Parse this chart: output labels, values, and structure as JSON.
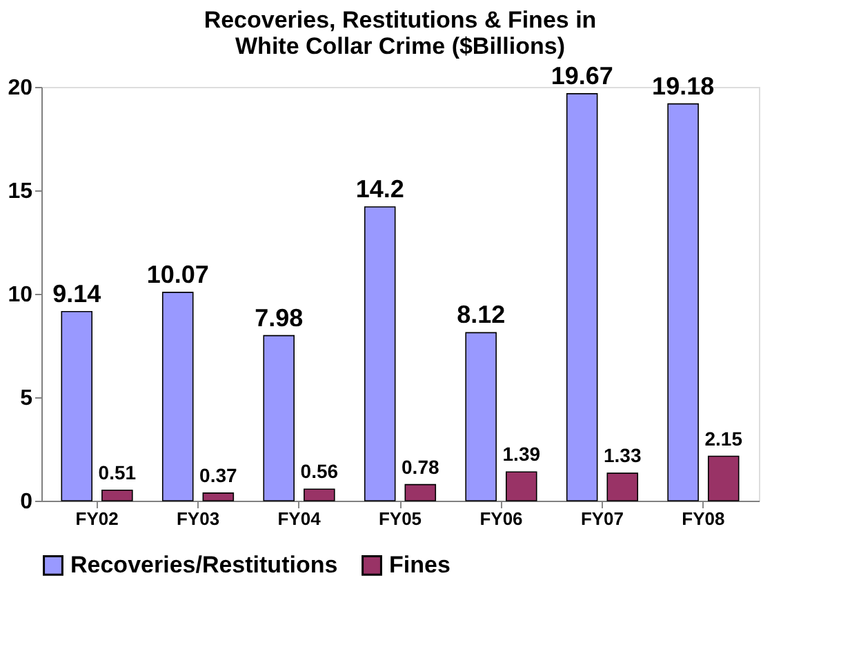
{
  "chart_data": {
    "type": "bar",
    "title": "Recoveries, Restitutions & Fines in White Collar Crime ($Billions)",
    "categories": [
      "FY02",
      "FY03",
      "FY04",
      "FY05",
      "FY06",
      "FY07",
      "FY08"
    ],
    "series": [
      {
        "name": "Recoveries/Restitutions",
        "color": "#9999ff",
        "values": [
          9.14,
          10.07,
          7.98,
          14.2,
          8.12,
          19.67,
          19.18
        ]
      },
      {
        "name": "Fines",
        "color": "#993366",
        "values": [
          0.51,
          0.37,
          0.56,
          0.78,
          1.39,
          1.33,
          2.15
        ]
      }
    ],
    "ylim": [
      0,
      20
    ],
    "yticks": [
      0,
      5,
      10,
      15,
      20
    ],
    "grid": false,
    "legend": "bottom",
    "data_labels": true
  }
}
